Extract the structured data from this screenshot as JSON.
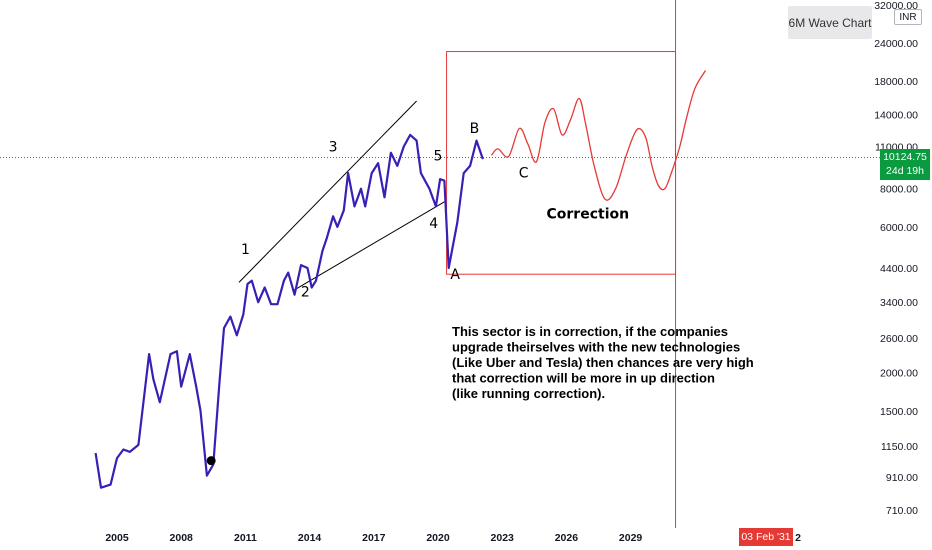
{
  "chart_data": {
    "type": "line",
    "title": "6M Wave Chart",
    "currency": "INR",
    "x_ticks": [
      "2005",
      "2008",
      "2011",
      "2014",
      "2017",
      "2020",
      "2023",
      "2026",
      "2029",
      "2032",
      "2035"
    ],
    "y_ticks": [
      "32000.00",
      "24000.00",
      "18000.00",
      "14000.00",
      "11000.00",
      "8000.00",
      "6000.00",
      "4400.00",
      "3400.00",
      "2600.00",
      "2000.00",
      "1500.00",
      "1150.00",
      "910.00",
      "710.00"
    ],
    "y_scale": "log",
    "ylim": [
      650,
      32000
    ],
    "xlim": [
      2002.3,
      2036.0
    ],
    "last_price": {
      "value": "10124.75",
      "countdown": "24d 19h",
      "price": 10124.75
    },
    "crosshair_date": "03 Feb '31",
    "crosshair_x": 2031.1,
    "price_series": {
      "name": "",
      "color": "#3a1fb5",
      "x": [
        2004.0,
        2004.25,
        2004.7,
        2005.0,
        2005.3,
        2005.6,
        2006.0,
        2006.5,
        2006.7,
        2007.0,
        2007.5,
        2007.8,
        2008.0,
        2008.4,
        2008.7,
        2008.9,
        2009.2,
        2009.5,
        2009.8,
        2010.0,
        2010.3,
        2010.6,
        2010.9,
        2011.1,
        2011.3,
        2011.6,
        2011.9,
        2012.2,
        2012.5,
        2012.8,
        2013.0,
        2013.3,
        2013.6,
        2013.9,
        2014.1,
        2014.3,
        2014.6,
        2014.8,
        2015.1,
        2015.3,
        2015.6,
        2015.8,
        2016.1,
        2016.4,
        2016.6,
        2016.9,
        2017.2,
        2017.5,
        2017.8,
        2018.1,
        2018.4,
        2018.7,
        2019.0,
        2019.2,
        2019.6,
        2019.9,
        2020.1,
        2020.3,
        2020.5,
        2020.9,
        2021.2,
        2021.5,
        2021.8,
        2022.1
      ],
      "values": [
        1090,
        840,
        860,
        1050,
        1120,
        1100,
        1160,
        2300,
        1900,
        1600,
        2300,
        2350,
        1800,
        2300,
        1800,
        1500,
        920,
        1000,
        1900,
        2800,
        3050,
        2650,
        3100,
        3900,
        4000,
        3400,
        3800,
        3350,
        3350,
        4000,
        4250,
        3600,
        4500,
        4400,
        3800,
        4000,
        5000,
        5500,
        6500,
        6000,
        6800,
        9000,
        7000,
        8000,
        7000,
        9000,
        9700,
        7500,
        10500,
        9500,
        11000,
        12000,
        11500,
        9000,
        8000,
        7000,
        8600,
        8500,
        4400,
        6200,
        9000,
        9500,
        11500,
        10000
      ]
    },
    "projection_series": {
      "name": "",
      "color": "#e53935",
      "x": [
        2022.5,
        2022.8,
        2023.3,
        2023.8,
        2024.2,
        2024.6,
        2025.0,
        2025.4,
        2025.8,
        2026.2,
        2026.6,
        2026.9,
        2027.3,
        2027.8,
        2028.3,
        2028.8,
        2029.3,
        2029.7,
        2030.0,
        2030.3,
        2030.6,
        2030.9,
        2031.3,
        2031.6,
        2032.0,
        2032.5
      ],
      "values": [
        10300,
        10800,
        10200,
        12600,
        11200,
        9800,
        13200,
        14600,
        12000,
        13500,
        15800,
        13000,
        9500,
        7400,
        8000,
        10300,
        12500,
        11800,
        9500,
        8200,
        8000,
        9000,
        11000,
        13500,
        17000,
        19500
      ]
    },
    "annotations": [
      {
        "label": "1",
        "x": 2011.0,
        "y": 4900
      },
      {
        "label": "2",
        "x": 2013.8,
        "y": 3550
      },
      {
        "label": "3",
        "x": 2015.1,
        "y": 10600
      },
      {
        "label": "4",
        "x": 2019.8,
        "y": 5950
      },
      {
        "label": "5",
        "x": 2020.0,
        "y": 9900
      },
      {
        "label": "A",
        "x": 2020.8,
        "y": 4050
      },
      {
        "label": "B",
        "x": 2021.7,
        "y": 12200
      },
      {
        "label": "C",
        "x": 2024.0,
        "y": 8700
      },
      {
        "label": "Correction",
        "x": 2027.0,
        "y": 6400
      }
    ],
    "trendlines": [
      {
        "x": [
          2010.7,
          2019.0
        ],
        "y": [
          3950,
          15500
        ]
      },
      {
        "x": [
          2013.2,
          2020.3
        ],
        "y": [
          3700,
          7250
        ]
      }
    ],
    "correction_box": {
      "x": [
        2020.4,
        2031.1
      ],
      "y": [
        4200,
        22500
      ]
    },
    "marker_point": {
      "x": 2009.4,
      "y": 1030
    },
    "note_lines": [
      "This sector is in correction, if the companies",
      "upgrade theirselves  with the new technologies",
      "(Like Uber and Tesla) then chances are very high",
      "that correction will be more in up direction",
      "(like running correction)."
    ]
  }
}
